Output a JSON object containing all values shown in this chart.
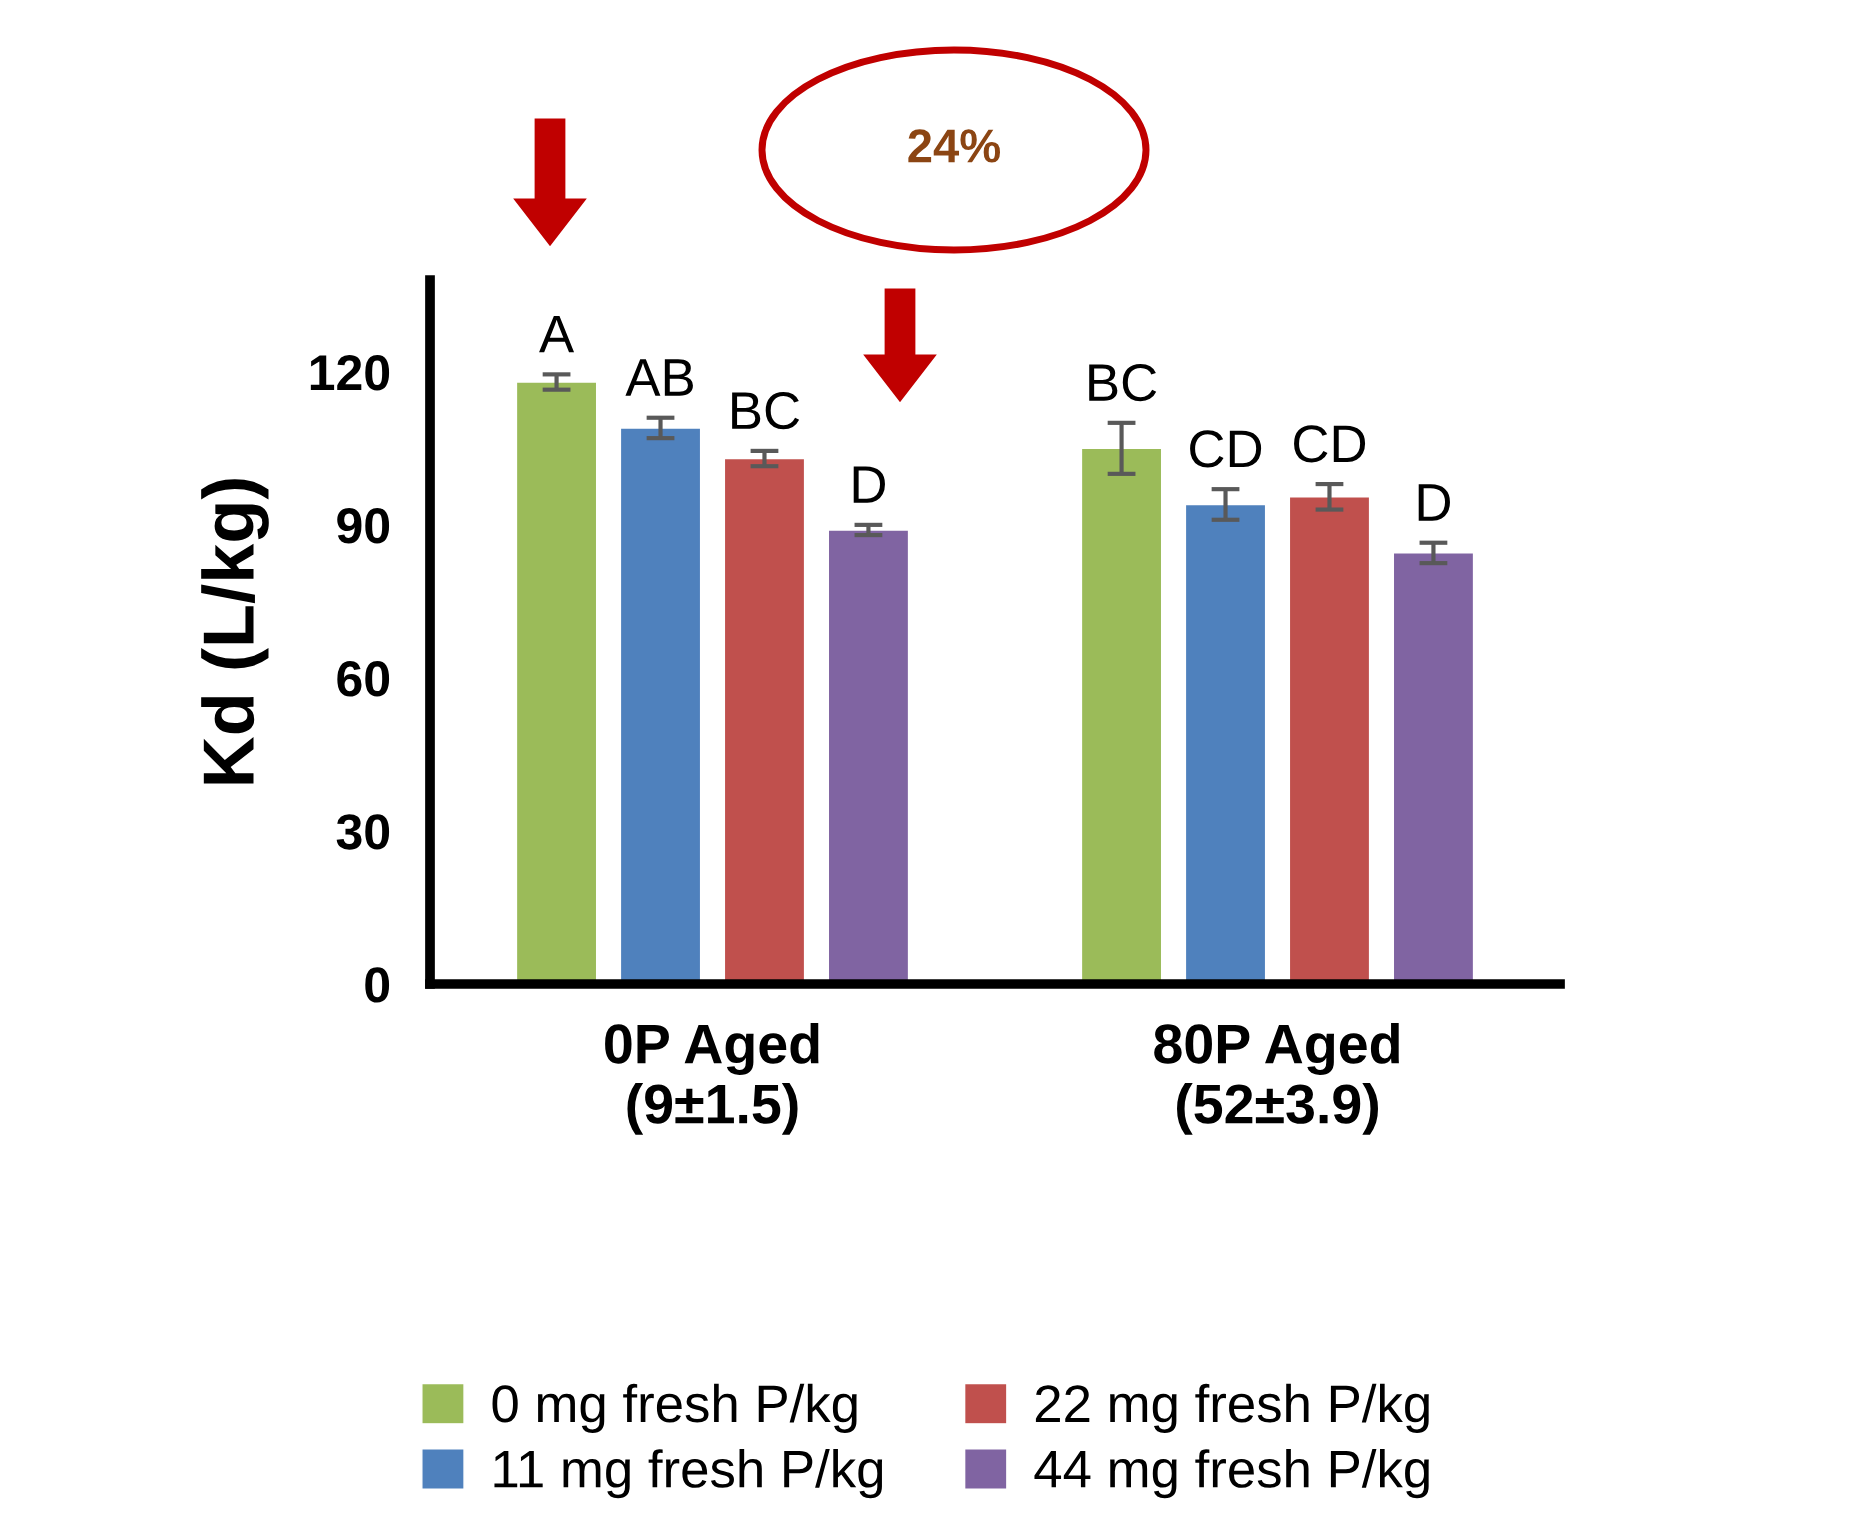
{
  "chart_data": {
    "type": "bar",
    "categories": [
      "0P Aged\n(9±1.5)",
      "80P Aged\n(52±3.9)"
    ],
    "ylabel": "Kd (L/kg)",
    "ylim": [
      0,
      138
    ],
    "yticks": [
      0,
      30,
      60,
      90,
      120
    ],
    "grid": false,
    "legend": "bottom",
    "series": [
      {
        "name": "0 mg fresh P/kg",
        "color": "#9bbb59",
        "values": [
          118,
          105
        ],
        "errors": [
          1.5,
          5
        ],
        "value_labels": [
          "A",
          "BC"
        ]
      },
      {
        "name": "11 mg fresh P/kg",
        "color": "#4f81bd",
        "values": [
          109,
          94
        ],
        "errors": [
          2,
          3
        ],
        "value_labels": [
          "AB",
          "CD"
        ]
      },
      {
        "name": "22 mg fresh P/kg",
        "color": "#c0504d",
        "values": [
          103,
          95.5
        ],
        "errors": [
          1.5,
          2.5
        ],
        "value_labels": [
          "BC",
          "CD"
        ]
      },
      {
        "name": "44 mg fresh P/kg",
        "color": "#8064a2",
        "values": [
          89,
          84.5
        ],
        "errors": [
          1,
          2
        ],
        "value_labels": [
          "D",
          "D"
        ]
      }
    ],
    "annotations": [
      "24%"
    ]
  }
}
